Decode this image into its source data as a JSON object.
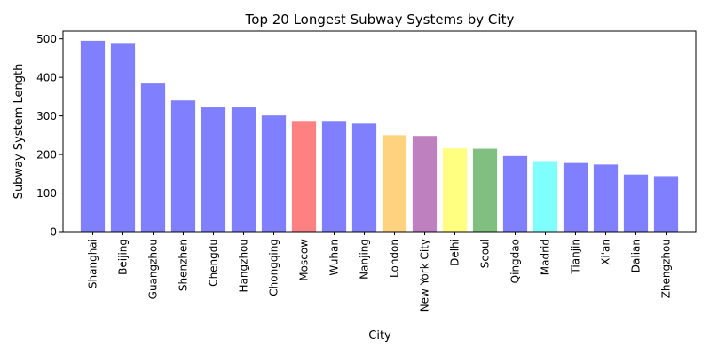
{
  "chart_data": {
    "type": "bar",
    "title": "Top 20 Longest Subway Systems by City",
    "xlabel": "City",
    "ylabel": "Subway System Length",
    "ylim": [
      0,
      520
    ],
    "yticks": [
      0,
      100,
      200,
      300,
      400,
      500
    ],
    "grid": false,
    "legend": "none",
    "categories": [
      "Shanghai",
      "Beijing",
      "Guangzhou",
      "Shenzhen",
      "Chengdu",
      "Hangzhou",
      "Chongqing",
      "Moscow",
      "Wuhan",
      "Nanjing",
      "London",
      "New York City",
      "Delhi",
      "Seoul",
      "Qingdao",
      "Madrid",
      "Tianjin",
      "Xi'an",
      "Dalian",
      "Zhengzhou"
    ],
    "values": [
      495,
      487,
      384,
      340,
      322,
      322,
      301,
      287,
      287,
      280,
      250,
      248,
      216,
      215,
      196,
      183,
      178,
      174,
      148,
      144
    ],
    "colors": [
      "#8080ff",
      "#8080ff",
      "#8080ff",
      "#8080ff",
      "#8080ff",
      "#8080ff",
      "#8080ff",
      "#ff8080",
      "#8080ff",
      "#8080ff",
      "#ffd280",
      "#bf80bf",
      "#ffff80",
      "#80bf80",
      "#8080ff",
      "#80ffff",
      "#8080ff",
      "#8080ff",
      "#8080ff",
      "#8080ff"
    ]
  }
}
